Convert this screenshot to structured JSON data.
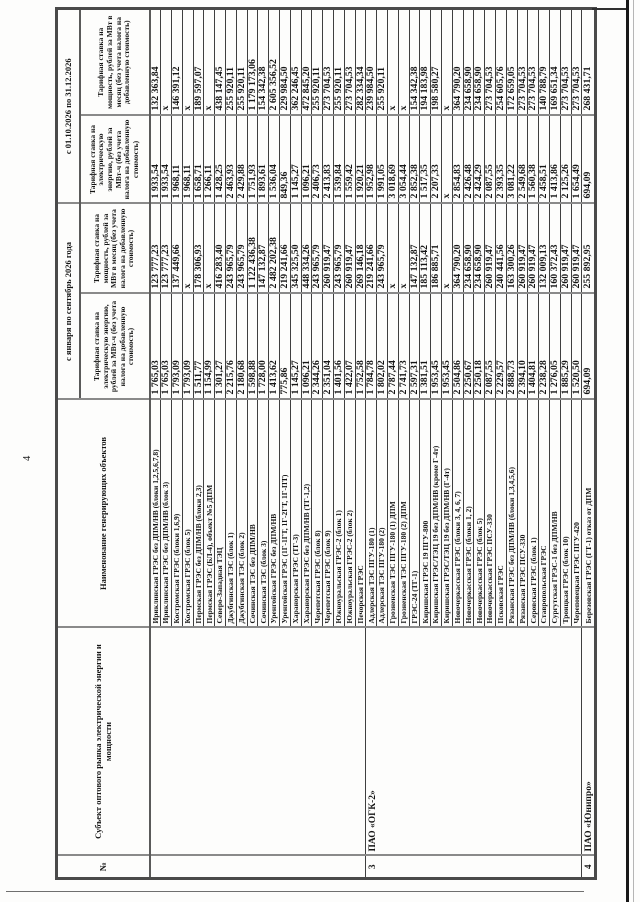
{
  "page": {
    "number": "4"
  },
  "table": {
    "headers": {
      "num": "№",
      "subject": "Субъект оптового рынка электрической энергии и мощности",
      "name": "Наименование генерирующих объектов",
      "period1": "с января по сентябрь 2026 года",
      "period2": "с 01.10.2026 по 31.12.2026",
      "energy_tariff": "Тарифная ставка на электрическую энергию, рублей за МВт-ч (без учета налога на добавленную стоимость)",
      "capacity_tariff": "Тарифная ставка на мощность, рублей за МВт в месяц (без учета налога на добавленную стоимость)"
    },
    "subjects": [
      {
        "num": "",
        "name": "",
        "rows": 20
      },
      {
        "num": "3",
        "name": "ПАО «ОГК-2»",
        "rows": 20
      },
      {
        "num": "4",
        "name": "ПАО «Юнипро»",
        "rows": 1
      }
    ],
    "rows": [
      {
        "name": "Ириклинская ГРЭС без ДПМ/НВ (блоки 1,2,5,6,7,8)",
        "e1": "1 765,03",
        "m1": "123 777,23",
        "e2": "1 933,54",
        "m2": "132 363,84"
      },
      {
        "name": "Ириклинская ГРЭС без ДПМ/НВ (блок 3)",
        "e1": "1 765,03",
        "m1": "123 777,23",
        "e2": "1 933,54",
        "m2": "x"
      },
      {
        "name": "Костромская ГРЭС (блоки 1,6,9)",
        "e1": "1 793,09",
        "m1": "137 449,66",
        "e2": "1 968,11",
        "m2": "146 391,12"
      },
      {
        "name": "Костромская ГРЭС (блок 5)",
        "e1": "1 793,09",
        "m1": "x",
        "e2": "1 968,11",
        "m2": "x"
      },
      {
        "name": "Пермская ГРЭС без ДПМ/НВ (блоки 2,3)",
        "e1": "1 511,77",
        "m1": "178 306,93",
        "e2": "1 658,71",
        "m2": "189 597,07"
      },
      {
        "name": "Пермская ГРЭС (БЛ-4), объект №5 ДПМ",
        "e1": "1 154,99",
        "m1": "x",
        "e2": "1 266,11",
        "m2": "x"
      },
      {
        "name": "Северо-Западная ТЭЦ",
        "e1": "1 301,27",
        "m1": "416 283,40",
        "e2": "1 428,25",
        "m2": "438 147,45"
      },
      {
        "name": "Джубгинская ТЭС (блок 1)",
        "e1": "2 215,76",
        "m1": "243 965,79",
        "e2": "2 463,93",
        "m2": "255 920,11"
      },
      {
        "name": "Джубгинская ТЭС (блок 2)",
        "e1": "2 180,68",
        "m1": "243 965,79",
        "e2": "2 429,88",
        "m2": "255 920,11"
      },
      {
        "name": "Сочинская ТЭС без ДПМ/НВ",
        "e1": "1 598,88",
        "m1": "1 122 436,38",
        "e2": "1 751,93",
        "m2": "1 179 173,06"
      },
      {
        "name": "Сочинская ТЭС (блок 3)",
        "e1": "1 728,00",
        "m1": "147 132,87",
        "e2": "1 893,61",
        "m2": "154 342,38"
      },
      {
        "name": "Уренгойская ГРЭС без ДПМ/НВ",
        "e1": "1 413,62",
        "m1": "2 482 202,38",
        "e2": "1 536,04",
        "m2": "2 605 356,52"
      },
      {
        "name": "Уренгойская ГРЭС (1Г-1ГТ, 1Г-2ГТ, 1Г-ПТ)",
        "e1": "775,86",
        "m1": "219 241,66",
        "e2": "849,36",
        "m2": "229 984,50"
      },
      {
        "name": "Харанорская ГРЭС (ТГ-3)",
        "e1": "1 145,27",
        "m1": "345 325,50",
        "e2": "1 145,27",
        "m2": "362 246,45"
      },
      {
        "name": "Харанорская ГРЭС без ДПМ/НВ (ТГ-1,2)",
        "e1": "1 096,21",
        "m1": "448 334,26",
        "e2": "1 096,21",
        "m2": "472 845,20"
      },
      {
        "name": "Черепетская ГРЭС (блок 8)",
        "e1": "2 344,26",
        "m1": "243 965,79",
        "e2": "2 406,73",
        "m2": "255 920,11"
      },
      {
        "name": "Черепетская ГРЭС (блок 9)",
        "e1": "2 351,04",
        "m1": "260 919,47",
        "e2": "2 413,83",
        "m2": "273 704,53"
      },
      {
        "name": "Южноуральская ГРЭС-2 (блок 1)",
        "e1": "1 401,56",
        "m1": "243 965,79",
        "e2": "1 539,84",
        "m2": "255 920,11"
      },
      {
        "name": "Южноуральская ГРЭС-2 (блок 2)",
        "e1": "1 422,07",
        "m1": "260 919,47",
        "e2": "1 559,42",
        "m2": "273 704,53"
      },
      {
        "name": "Печорская ГРЭС",
        "e1": "1 752,58",
        "m1": "269 146,18",
        "e2": "1 920,21",
        "m2": "282 334,34"
      },
      {
        "name": "Адлерская ТЭС ПГУ-180 (1)",
        "e1": "1 784,78",
        "m1": "219 241,66",
        "e2": "1 952,98",
        "m2": "239 984,50"
      },
      {
        "name": "Адлерская ТЭС ПГУ-180 (2)",
        "e1": "1 802,02",
        "m1": "243 965,79",
        "e2": "1 991,05",
        "m2": "255 920,11"
      },
      {
        "name": "Грозненская ТЭС ПГУ-180 (1) ДПМ",
        "e1": "2 787,44",
        "m1": "x",
        "e2": "3 018,69",
        "m2": "x"
      },
      {
        "name": "Грозненская ТЭС ПГУ-180 (2) ДПМ",
        "e1": "2 741,73",
        "m1": "x",
        "e2": "3 054,44",
        "m2": "x"
      },
      {
        "name": "ГРЭС-24 (ТГ-1)",
        "e1": "2 597,31",
        "m1": "147 132,87",
        "e2": "2 852,38",
        "m2": "154 342,38"
      },
      {
        "name": "Киришская ГРЭС 19 ПГУ-800",
        "e1": "1 381,51",
        "m1": "185 113,42",
        "e2": "1 517,35",
        "m2": "194 183,98"
      },
      {
        "name": "Киришская ГРЭС/ТЭЦ 19 без ДПМ/НВ (кроме Г-4т)",
        "e1": "1 953,45",
        "m1": "186 885,71",
        "e2": "2 207,33",
        "m2": "198 580,27"
      },
      {
        "name": "Киришская ГРЭС/ТЭЦ 19 без ДПМ/НВ (Г-4т)",
        "e1": "1 953,45",
        "m1": "x",
        "e2": "x",
        "m2": "x"
      },
      {
        "name": "Новочеркасская ГРЭС (блоки 3, 4, 6, 7)",
        "e1": "2 504,86",
        "m1": "364 790,20",
        "e2": "2 854,83",
        "m2": "364 790,20"
      },
      {
        "name": "Новочеркасская ГРЭС (блоки 1, 2)",
        "e1": "2 250,67",
        "m1": "234 658,90",
        "e2": "2 426,48",
        "m2": "234 658,90"
      },
      {
        "name": "Новочеркасская ГРЭС (блок 5)",
        "e1": "2 250,18",
        "m1": "234 658,90",
        "e2": "2 424,29",
        "m2": "234 658,90"
      },
      {
        "name": "Новочеркасская ГРЭС ПСУ-330",
        "e1": "2 087,55",
        "m1": "260 919,47",
        "e2": "2 087,55",
        "m2": "273 704,53"
      },
      {
        "name": "Псковская ГРЭС",
        "e1": "2 229,57",
        "m1": "240 441,56",
        "e2": "2 393,35",
        "m2": "254 605,76"
      },
      {
        "name": "Рязанская ГРЭС без ДПМ/НВ (блоки 1,3,4,5,6)",
        "e1": "2 888,73",
        "m1": "163 300,26",
        "e2": "3 081,22",
        "m2": "172 659,05"
      },
      {
        "name": "Рязанская ГРЭС ПСУ-330",
        "e1": "2 394,10",
        "m1": "260 919,47",
        "e2": "2 549,68",
        "m2": "273 704,53"
      },
      {
        "name": "Серовская ГРЭС (блок 1)",
        "e1": "1 404,81",
        "m1": "260 919,47",
        "e2": "1 560,38",
        "m2": "273 704,53"
      },
      {
        "name": "Ставропольская ГРЭС",
        "e1": "2 238,28",
        "m1": "132 009,13",
        "e2": "2 458,51",
        "m2": "140 788,79"
      },
      {
        "name": "Сургутская ГРЭС-1 без ДПМ/НВ",
        "e1": "1 276,05",
        "m1": "160 372,43",
        "e2": "1 413,86",
        "m2": "169 651,34"
      },
      {
        "name": "Троицкая ГРЭС (блок 10)",
        "e1": "1 885,29",
        "m1": "260 919,47",
        "e2": "2 125,26",
        "m2": "273 704,53"
      },
      {
        "name": "Череповецкая ГРЭС ПГУ-420",
        "e1": "1 520,50",
        "m1": "260 919,47",
        "e2": "1 654,49",
        "m2": "273 704,53"
      },
      {
        "name": "Березовская ГРЭС (ГТ-1) отказ от ДПМ",
        "e1": "694,09",
        "m1": "255 892,95",
        "e2": "694,09",
        "m2": "268 431,71"
      }
    ]
  }
}
